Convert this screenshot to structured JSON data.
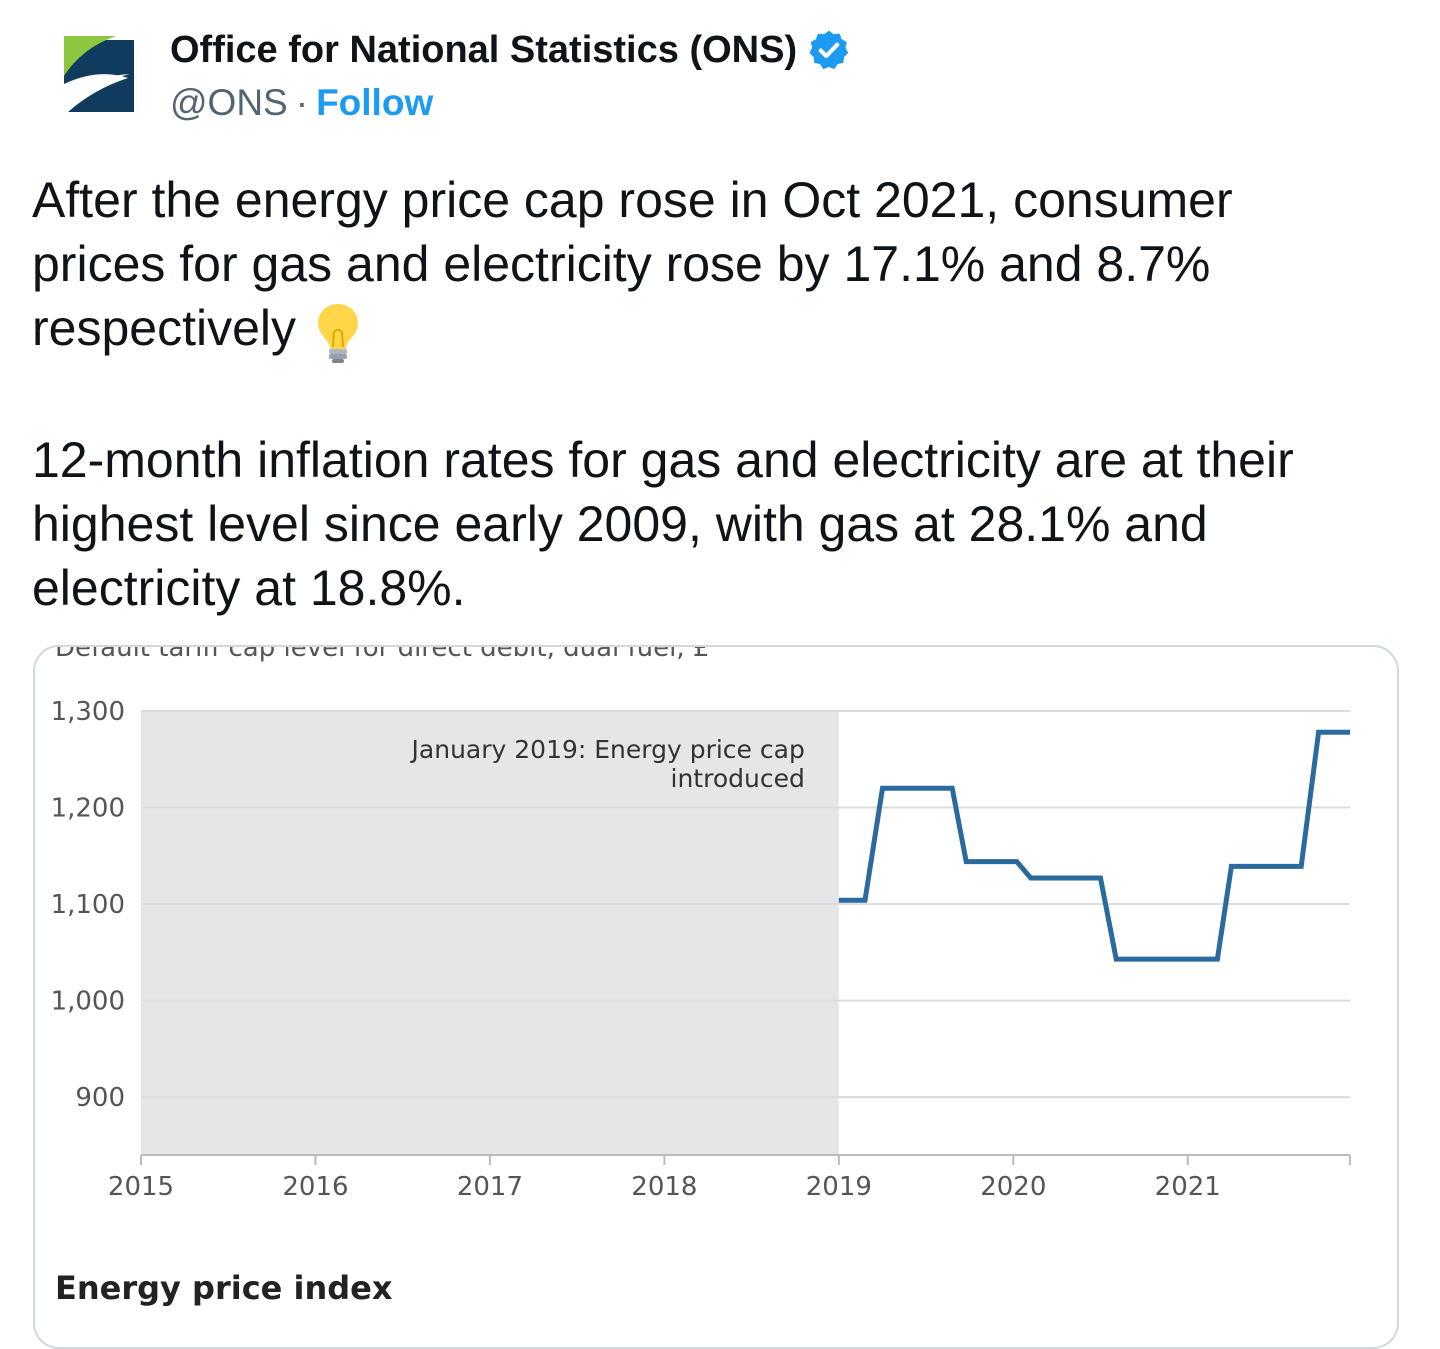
{
  "tweet": {
    "display_name": "Office for National Statistics (ONS)",
    "handle": "@ONS",
    "separator": "·",
    "follow_label": "Follow",
    "text_line1": "After the energy price cap rose in Oct 2021, consumer",
    "text_line2": "prices for gas and electricity rose by 17.1% and 8.7%",
    "text_line3": "respectively",
    "text_para2_line1": "12-month inflation rates for gas and electricity are at their",
    "text_para2_line2": "highest level since early 2009, with gas at 28.1% and",
    "text_para2_line3": "electricity at 18.8%.",
    "emoji": "light-bulb-icon"
  },
  "colors": {
    "accent": "#1d9bf0",
    "line": "#2b6a9e",
    "shade": "#e6e6e8",
    "logo_green": "#8dc63f",
    "logo_navy": "#0f3b5f"
  },
  "card": {
    "top_cut_text": "Default tariff cap level for direct debit, dual fuel, £",
    "bottom_cut_text": "Energy price index"
  },
  "chart_data": {
    "type": "line",
    "title": "Default tariff cap level for direct debit, dual fuel, £",
    "x_ticks": [
      "2015",
      "2016",
      "2017",
      "2018",
      "2019",
      "2020",
      "2021"
    ],
    "y_ticks": [
      "900",
      "1,000",
      "1,100",
      "1,200",
      "1,300"
    ],
    "xlim": [
      2015,
      2021.93
    ],
    "ylim": [
      840,
      1300
    ],
    "annotation": "January 2019: Energy price cap introduced",
    "annotation_lines": [
      "January 2019: Energy price cap",
      "introduced"
    ],
    "shaded_region": [
      2015,
      2019
    ],
    "series": [
      {
        "points": [
          [
            2019.0,
            1104
          ],
          [
            2019.15,
            1104
          ],
          [
            2019.25,
            1220
          ],
          [
            2019.65,
            1220
          ],
          [
            2019.73,
            1144
          ],
          [
            2020.02,
            1144
          ],
          [
            2020.1,
            1127
          ],
          [
            2020.5,
            1127
          ],
          [
            2020.59,
            1043
          ],
          [
            2021.17,
            1043
          ],
          [
            2021.25,
            1139
          ],
          [
            2021.65,
            1139
          ],
          [
            2021.75,
            1278
          ],
          [
            2021.93,
            1278
          ]
        ]
      }
    ],
    "grid": true
  }
}
